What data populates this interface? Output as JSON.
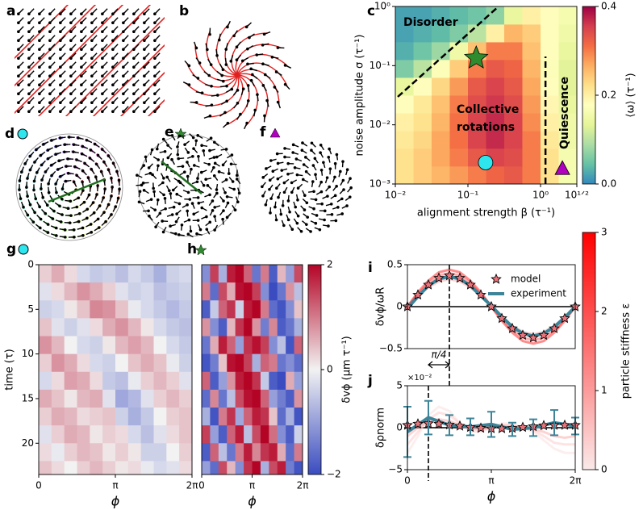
{
  "illustrations": [
    {
      "label": "a"
    },
    {
      "label": "b"
    },
    {
      "label": "d"
    },
    {
      "label": "e"
    },
    {
      "label": "f"
    }
  ],
  "chart_data": [
    {
      "type": "heatmap",
      "panel_label": "c",
      "xlabel": "alignment strength β (τ⁻¹)",
      "ylabel": "noise amplitude σ (τ⁻¹)",
      "xscale": "log",
      "yscale": "log",
      "xlim": [
        0.01,
        3.1623
      ],
      "ylim": [
        0.001,
        1
      ],
      "xticks": [
        {
          "value": 0.01,
          "label": "10⁻²"
        },
        {
          "value": 0.1,
          "label": "10⁻¹"
        },
        {
          "value": 1,
          "label": "10⁰"
        },
        {
          "value": 3.1623,
          "label": "10¹ᐟ²"
        }
      ],
      "yticks": [
        {
          "value": 0.001,
          "label": "10⁻³"
        },
        {
          "value": 0.01,
          "label": "10⁻²"
        },
        {
          "value": 0.1,
          "label": "10⁻¹"
        },
        {
          "value": 1,
          "label": "10⁰"
        }
      ],
      "xbins": [
        0.01,
        0.0178,
        0.0316,
        0.0562,
        0.1,
        0.178,
        0.316,
        0.562,
        1,
        1.78,
        3.1623
      ],
      "ybins": [
        0.001,
        0.002,
        0.004,
        0.0079,
        0.0158,
        0.0316,
        0.063,
        0.126,
        0.251,
        0.501,
        1
      ],
      "z": [
        [
          0.22,
          0.24,
          0.26,
          0.28,
          0.3,
          0.32,
          0.33,
          0.3,
          0.22,
          0.16
        ],
        [
          0.22,
          0.24,
          0.27,
          0.3,
          0.33,
          0.35,
          0.34,
          0.3,
          0.22,
          0.16
        ],
        [
          0.21,
          0.23,
          0.27,
          0.31,
          0.35,
          0.37,
          0.35,
          0.3,
          0.21,
          0.15
        ],
        [
          0.2,
          0.22,
          0.26,
          0.31,
          0.35,
          0.37,
          0.35,
          0.29,
          0.2,
          0.15
        ],
        [
          0.18,
          0.21,
          0.25,
          0.3,
          0.34,
          0.36,
          0.34,
          0.28,
          0.19,
          0.14
        ],
        [
          0.14,
          0.18,
          0.23,
          0.28,
          0.33,
          0.35,
          0.33,
          0.27,
          0.18,
          0.13
        ],
        [
          0.06,
          0.1,
          0.17,
          0.24,
          0.3,
          0.33,
          0.32,
          0.26,
          0.17,
          0.13
        ],
        [
          0.03,
          0.05,
          0.08,
          0.15,
          0.25,
          0.3,
          0.3,
          0.25,
          0.18,
          0.14
        ],
        [
          0.02,
          0.03,
          0.04,
          0.06,
          0.1,
          0.2,
          0.26,
          0.24,
          0.18,
          0.15
        ],
        [
          0.02,
          0.02,
          0.03,
          0.04,
          0.05,
          0.07,
          0.14,
          0.2,
          0.18,
          0.16
        ]
      ],
      "zlim": [
        0,
        0.4
      ],
      "cmap": [
        "#3288bd",
        "#66c2a5",
        "#abdda4",
        "#e6f598",
        "#ffffbf",
        "#fee08b",
        "#fdae61",
        "#f46d43",
        "#d53e4f",
        "#9e0142"
      ],
      "colorbar": {
        "label": "⟨ω⟩ (τ⁻¹)",
        "ticks": [
          {
            "value": 0,
            "label": "0.0"
          },
          0.2,
          0.4
        ]
      },
      "annotations": [
        "Disorder",
        "Collective",
        "rotations",
        "Quiescence"
      ],
      "dashed_lines": [
        {
          "x": [
            0.0108,
            0.264
          ],
          "y": [
            0.0297,
            1
          ]
        },
        {
          "x": [
            1.17,
            1.17
          ],
          "y": [
            0.001,
            0.143
          ]
        }
      ],
      "markers": [
        {
          "shape": "star",
          "color": "#2e8b2e",
          "x": 0.13,
          "y": 0.134
        },
        {
          "shape": "circle",
          "color": "#2ee6ee",
          "x": 0.175,
          "y": 0.0023
        },
        {
          "shape": "triangle",
          "color": "#b000c0",
          "x": 2.0,
          "y": 0.0018
        }
      ]
    },
    {
      "type": "heatmap",
      "panel_label": "g",
      "ylabel": "time (τ)",
      "xlabel": "ϕ",
      "xlim": [
        0,
        6.2832
      ],
      "ylim": [
        0,
        23.5
      ],
      "y_inverted": true,
      "xticks": [
        0,
        {
          "value": 3.1416,
          "label": "π"
        },
        {
          "value": 6.2832,
          "label": "2π"
        }
      ],
      "yticks": [
        0,
        5,
        10,
        15,
        20
      ],
      "xbins": [
        0,
        0.5236,
        1.0472,
        1.5708,
        2.0944,
        2.618,
        3.1416,
        3.6652,
        4.1888,
        4.7124,
        5.236,
        5.7596,
        6.2832
      ],
      "ybins": [
        0,
        2,
        4,
        6,
        8,
        10,
        12,
        14,
        16,
        18,
        20,
        22,
        23.5
      ],
      "zlim": [
        -2,
        2
      ],
      "cmap": [
        "#3a4cc0",
        "#f2f2f2",
        "#b40426"
      ],
      "z": [
        [
          0.3,
          0.6,
          0.2,
          -0.3,
          -0.5,
          -0.4,
          -0.6,
          -0.3,
          -0.5,
          -0.8,
          -0.4,
          -0.3
        ],
        [
          -0.2,
          0.2,
          0.5,
          0.8,
          0.6,
          0.3,
          -0.2,
          -0.4,
          -0.3,
          -0.6,
          -0.5,
          -0.4
        ],
        [
          -0.4,
          -0.3,
          0.1,
          0.4,
          0.9,
          0.8,
          0.4,
          -0.1,
          -0.3,
          -0.5,
          -0.7,
          -0.5
        ],
        [
          0.4,
          -0.2,
          -0.4,
          -0.2,
          0.2,
          0.6,
          0.8,
          0.5,
          0.1,
          -0.3,
          -0.5,
          -0.6
        ],
        [
          0.8,
          0.5,
          0.0,
          -0.3,
          -0.4,
          0.1,
          0.5,
          0.7,
          0.5,
          0.0,
          -0.3,
          -0.5
        ],
        [
          0.3,
          0.8,
          0.6,
          0.2,
          -0.3,
          -0.4,
          0.0,
          0.4,
          0.6,
          0.4,
          -0.1,
          -0.4
        ],
        [
          -0.3,
          0.2,
          0.7,
          0.6,
          0.2,
          -0.5,
          -0.6,
          -0.1,
          0.3,
          0.5,
          0.3,
          -0.2
        ],
        [
          0.6,
          0.4,
          0.1,
          0.5,
          0.6,
          -0.2,
          -0.9,
          -0.7,
          -0.2,
          0.3,
          0.5,
          0.3
        ],
        [
          0.3,
          0.6,
          0.5,
          0.2,
          0.3,
          0.4,
          -0.4,
          -0.8,
          -0.5,
          0.0,
          0.3,
          0.4
        ],
        [
          -0.2,
          0.3,
          0.6,
          0.5,
          0.1,
          0.3,
          0.2,
          -0.3,
          -0.6,
          -0.2,
          0.2,
          0.4
        ],
        [
          0.2,
          -0.1,
          0.3,
          0.5,
          0.4,
          0.1,
          0.3,
          0.1,
          -0.4,
          -0.4,
          0.0,
          0.3
        ],
        [
          0.4,
          0.2,
          0.0,
          0.3,
          0.5,
          0.3,
          0.1,
          0.2,
          -0.1,
          -0.3,
          -0.2,
          0.2
        ]
      ]
    },
    {
      "type": "heatmap",
      "panel_label": "h",
      "xlabel": "ϕ",
      "xlim": [
        0,
        6.2832
      ],
      "ylim": [
        0,
        23.5
      ],
      "y_inverted": true,
      "xticks": [
        0,
        {
          "value": 3.1416,
          "label": "π"
        },
        {
          "value": 6.2832,
          "label": "2π"
        }
      ],
      "xbins": [
        0,
        0.5236,
        1.0472,
        1.5708,
        2.0944,
        2.618,
        3.1416,
        3.6652,
        4.1888,
        4.7124,
        5.236,
        5.7596,
        6.2832
      ],
      "ybins": [
        0,
        2,
        4,
        6,
        8,
        10,
        12,
        14,
        16,
        18,
        20,
        22,
        23.5
      ],
      "zlim": [
        -2,
        2
      ],
      "cmap": [
        "#3a4cc0",
        "#f2f2f2",
        "#b40426"
      ],
      "colorbar": {
        "label": "δvϕ (μm τ⁻¹)",
        "ticks": [
          {
            "value": -2,
            "label": "−2"
          },
          0,
          2
        ]
      },
      "z": [
        [
          -1.2,
          1.5,
          -0.8,
          1.8,
          2.0,
          1.2,
          -1.5,
          1.0,
          -1.8,
          0.5,
          -1.0,
          1.4
        ],
        [
          1.0,
          -1.6,
          1.4,
          0.6,
          1.9,
          2.0,
          1.5,
          -1.2,
          -2.0,
          -1.5,
          0.8,
          -0.6
        ],
        [
          -1.8,
          -0.5,
          1.2,
          1.6,
          -0.4,
          1.8,
          2.0,
          1.0,
          -1.6,
          -1.9,
          -1.2,
          0.4
        ],
        [
          0.8,
          -1.2,
          -1.8,
          0.5,
          1.6,
          2.0,
          0.8,
          -1.4,
          0.9,
          -1.8,
          -1.5,
          -0.8
        ],
        [
          -1.5,
          0.6,
          1.8,
          1.2,
          -1.0,
          1.6,
          1.9,
          1.5,
          -1.2,
          -0.6,
          -1.9,
          1.2
        ],
        [
          -1.9,
          -1.4,
          0.4,
          1.9,
          2.0,
          1.5,
          -0.8,
          1.2,
          1.0,
          -1.5,
          -1.2,
          -1.6
        ],
        [
          1.2,
          -1.8,
          -1.0,
          0.8,
          1.8,
          2.0,
          1.6,
          -0.5,
          -1.8,
          -2.0,
          0.6,
          -1.0
        ],
        [
          -1.6,
          0.9,
          -1.5,
          -0.6,
          1.4,
          1.9,
          2.0,
          1.2,
          -1.0,
          -1.4,
          -1.8,
          0.8
        ],
        [
          -0.8,
          -1.9,
          1.0,
          1.6,
          -0.9,
          1.2,
          1.8,
          1.6,
          0.4,
          -1.6,
          -0.8,
          -1.9
        ],
        [
          1.5,
          -1.0,
          -1.8,
          1.2,
          1.8,
          -0.6,
          1.4,
          2.0,
          1.1,
          -1.2,
          -1.8,
          -0.4
        ],
        [
          -1.8,
          1.2,
          -0.6,
          -1.5,
          1.0,
          1.8,
          0.9,
          1.6,
          1.8,
          0.6,
          -1.6,
          1.0
        ],
        [
          -1.0,
          -1.6,
          1.4,
          0.5,
          -1.2,
          1.6,
          2.0,
          -0.8,
          1.4,
          1.8,
          -1.4,
          -1.9
        ]
      ]
    },
    {
      "type": "line",
      "panel_label": "i",
      "ylabel": "δvϕ/ωR",
      "xlim": [
        0,
        6.2832
      ],
      "ylim": [
        -0.5,
        0.5
      ],
      "yticks": [
        {
          "value": -0.5,
          "label": "−0.5"
        },
        0,
        0.5
      ],
      "x": [
        0,
        0.3927,
        0.7854,
        1.1781,
        1.5708,
        1.9635,
        2.3562,
        2.7489,
        3.1416,
        3.5343,
        3.927,
        4.3197,
        4.7124,
        5.1051,
        5.4978,
        5.8905,
        6.2832
      ],
      "series": [
        {
          "name": "model",
          "marker": "star",
          "color": "#e8747c",
          "values": [
            0,
            0.14,
            0.26,
            0.34,
            0.37,
            0.34,
            0.26,
            0.14,
            0,
            -0.14,
            -0.26,
            -0.34,
            -0.37,
            -0.34,
            -0.26,
            -0.14,
            0
          ]
        },
        {
          "name": "experiment",
          "color": "#3d8499",
          "values": [
            -0.02,
            0.12,
            0.25,
            0.33,
            0.36,
            0.33,
            0.25,
            0.13,
            0.01,
            -0.12,
            -0.24,
            -0.32,
            -0.35,
            -0.32,
            -0.24,
            -0.13,
            0
          ]
        }
      ],
      "stiffness_curves": [
        {
          "epsilon": 1,
          "values": [
            0,
            0.13,
            0.23,
            0.3,
            0.33,
            0.3,
            0.23,
            0.13,
            0,
            -0.13,
            -0.23,
            -0.3,
            -0.33,
            -0.3,
            -0.23,
            -0.13,
            0
          ]
        },
        {
          "epsilon": 2,
          "values": [
            0,
            0.15,
            0.28,
            0.37,
            0.4,
            0.37,
            0.28,
            0.15,
            0,
            -0.15,
            -0.28,
            -0.37,
            -0.4,
            -0.37,
            -0.28,
            -0.15,
            0
          ]
        },
        {
          "epsilon": 3,
          "values": [
            0,
            0.17,
            0.31,
            0.41,
            0.44,
            0.41,
            0.31,
            0.17,
            0,
            -0.17,
            -0.31,
            -0.41,
            -0.44,
            -0.41,
            -0.31,
            -0.17,
            0
          ]
        }
      ],
      "vline": 1.5708,
      "annotation": {
        "text": "π/4",
        "from": 0.7854,
        "to": 1.5708
      },
      "colorbar": {
        "label": "particle stiffness ε",
        "lim": [
          0,
          3
        ],
        "ticks": [
          0,
          1,
          2,
          3
        ],
        "cmap": [
          "#fbe9e9",
          "#ff0000"
        ]
      }
    },
    {
      "type": "line",
      "panel_label": "j",
      "ylabel": "δρnorm",
      "xlabel": "ϕ",
      "multiplier": "×10⁻²",
      "xlim": [
        0,
        6.2832
      ],
      "ylim": [
        -5,
        5
      ],
      "xticks": [
        0,
        {
          "value": 3.1416,
          "label": "π"
        },
        {
          "value": 6.2832,
          "label": "2π"
        }
      ],
      "yticks": [
        {
          "value": -5,
          "label": "−5"
        },
        0,
        5
      ],
      "x": [
        0,
        0.3927,
        0.7854,
        1.1781,
        1.5708,
        1.9635,
        2.3562,
        2.7489,
        3.1416,
        3.5343,
        3.927,
        4.3197,
        4.7124,
        5.1051,
        5.4978,
        5.8905,
        6.2832
      ],
      "series": [
        {
          "marker": "star",
          "color": "#e8747c",
          "values": [
            0.3,
            0.45,
            0.5,
            0.45,
            0.35,
            0.2,
            0.05,
            -0.05,
            -0.1,
            -0.1,
            -0.05,
            0.05,
            0.15,
            0.25,
            0.3,
            0.3,
            0.3
          ]
        },
        {
          "color": "#3d8499",
          "x": [
            0,
            0.7854,
            1.5708,
            2.3562,
            3.1416,
            3.927,
            4.7124,
            5.4978,
            6.2832
          ],
          "values": [
            -0.5,
            1.2,
            0.3,
            0.1,
            0.4,
            -0.2,
            0.0,
            0.6,
            0.2
          ],
          "errors": [
            3,
            2,
            1.2,
            1,
            1.5,
            0.8,
            1,
            1.5,
            1
          ]
        }
      ],
      "stiffness_curves": [
        {
          "epsilon": 0.2,
          "values": [
            -3,
            -1,
            1.5,
            2.5,
            2,
            0.5,
            -0.5,
            -0.5,
            0,
            0.5,
            0.5,
            0,
            -0.5,
            -1.5,
            -2.5,
            -3,
            -3
          ]
        },
        {
          "epsilon": 0.5,
          "values": [
            -2,
            -0.5,
            1,
            1.8,
            1.5,
            0.5,
            -0.3,
            -0.3,
            0,
            0.3,
            0.3,
            0,
            -0.3,
            -1,
            -1.8,
            -2,
            -2
          ]
        },
        {
          "epsilon": 1,
          "values": [
            -1,
            0,
            0.8,
            1,
            0.8,
            0.3,
            -0.1,
            -0.2,
            0,
            0.2,
            0.2,
            0,
            -0.2,
            -0.5,
            -1,
            -1.2,
            -1
          ]
        }
      ],
      "vline": 0.7854
    }
  ]
}
